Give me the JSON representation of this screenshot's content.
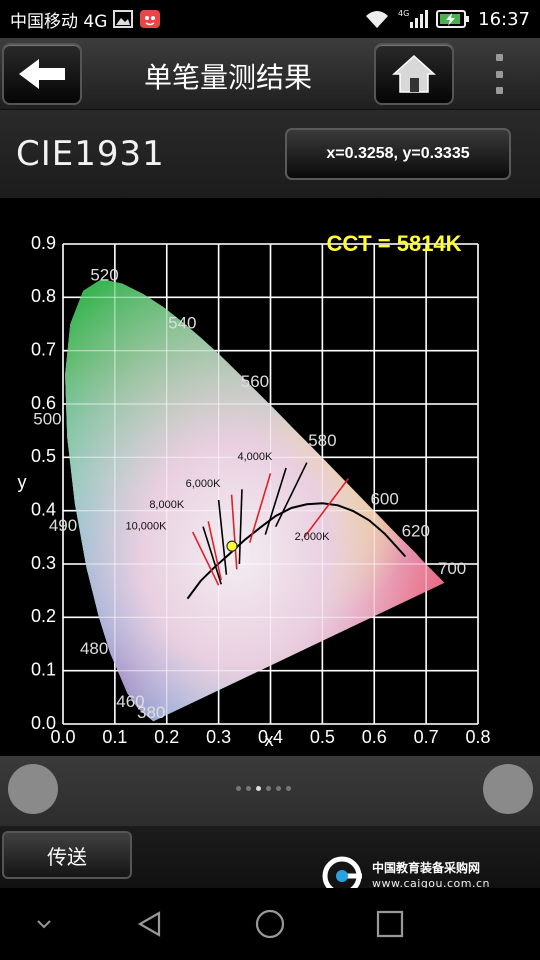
{
  "status_bar": {
    "carrier": "中国移动 4G",
    "network": "4G",
    "time": "16:37",
    "icons": [
      "gallery-icon",
      "app-notification-icon",
      "wifi-icon",
      "signal-icon",
      "battery-charging-icon"
    ]
  },
  "header": {
    "title": "单笔量测结果",
    "back_icon": "arrow-left-icon",
    "home_icon": "home-icon",
    "menu_icon": "overflow-menu-icon"
  },
  "measurement": {
    "space_label": "CIE1931",
    "coordinates": "x=0.3258, y=0.3335"
  },
  "chart_data": {
    "type": "scatter",
    "title": "CCT = 5814K",
    "xlabel": "x",
    "ylabel": "y",
    "xlim": [
      0.0,
      0.8
    ],
    "ylim": [
      0.0,
      0.9
    ],
    "x_ticks": [
      "0.0",
      "0.1",
      "0.2",
      "0.3",
      "0.4",
      "0.5",
      "0.6",
      "0.7",
      "0.8"
    ],
    "y_ticks": [
      "0.0",
      "0.1",
      "0.2",
      "0.3",
      "0.4",
      "0.5",
      "0.6",
      "0.7",
      "0.8",
      "0.9"
    ],
    "grid": true,
    "wavelength_labels": [
      {
        "label": "380",
        "x": 0.17,
        "y": 0.02
      },
      {
        "label": "460",
        "x": 0.13,
        "y": 0.04
      },
      {
        "label": "480",
        "x": 0.06,
        "y": 0.14
      },
      {
        "label": "490",
        "x": 0.0,
        "y": 0.37
      },
      {
        "label": "500",
        "x": -0.03,
        "y": 0.57
      },
      {
        "label": "520",
        "x": 0.08,
        "y": 0.84
      },
      {
        "label": "540",
        "x": 0.23,
        "y": 0.75
      },
      {
        "label": "560",
        "x": 0.37,
        "y": 0.64
      },
      {
        "label": "580",
        "x": 0.5,
        "y": 0.53
      },
      {
        "label": "600",
        "x": 0.62,
        "y": 0.42
      },
      {
        "label": "620",
        "x": 0.68,
        "y": 0.36
      },
      {
        "label": "700",
        "x": 0.75,
        "y": 0.29
      }
    ],
    "cct_labels": [
      {
        "label": "10,000K",
        "x": 0.16,
        "y": 0.37
      },
      {
        "label": "8,000K",
        "x": 0.2,
        "y": 0.41
      },
      {
        "label": "6,000K",
        "x": 0.27,
        "y": 0.45
      },
      {
        "label": "4,000K",
        "x": 0.37,
        "y": 0.5
      },
      {
        "label": "2,000K",
        "x": 0.48,
        "y": 0.35
      }
    ],
    "measured_point": {
      "x": 0.3258,
      "y": 0.3335
    },
    "point_color": "#ffff33",
    "title_color": "#ffff33"
  },
  "carousel": {
    "page_count": 6,
    "active_index": 3
  },
  "footer": {
    "send_label": "传送",
    "watermark_title": "中国教育装备采购网",
    "watermark_url": "www.caigou.com.cn"
  },
  "android_nav": [
    "nav-down-icon",
    "nav-back-icon",
    "nav-home-icon",
    "nav-recents-icon"
  ]
}
